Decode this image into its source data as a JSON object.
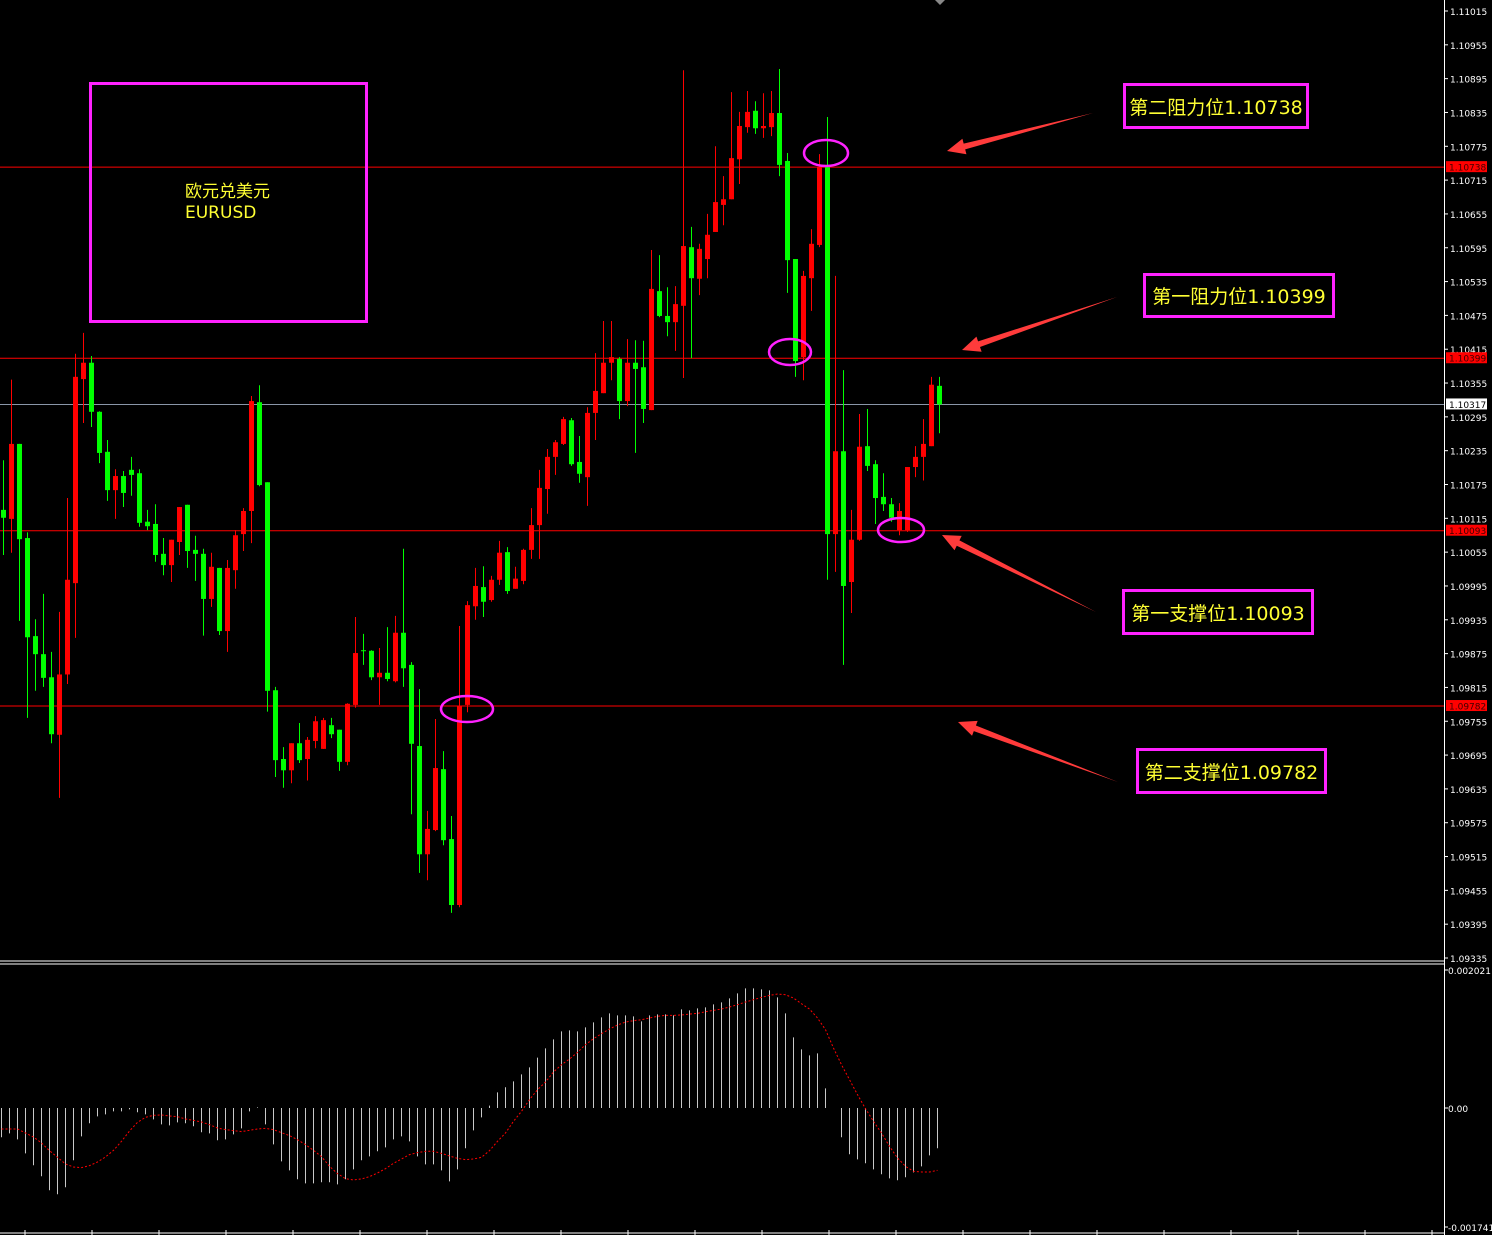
{
  "symbol": {
    "name_cn": "欧元兑美元",
    "name": "EURUSD"
  },
  "colors": {
    "background": "#000000",
    "up_candle": "#ff0000",
    "down_candle": "#00ff00",
    "level_line": "#ff0000",
    "current_price_line": "#8a96a8",
    "annotation": "#ff22ff",
    "label_text": "#ffff33",
    "macd_histogram": "#c8c8c8",
    "macd_signal": "#ff0000"
  },
  "levels": [
    {
      "label": "第二阻力位1.10738",
      "price": 1.10738,
      "tag": "1.10738"
    },
    {
      "label": "第一阻力位1.10399",
      "price": 1.10399,
      "tag": "1.10399"
    },
    {
      "label": "第一支撑位1.10093",
      "price": 1.10093,
      "tag": "1.10093"
    },
    {
      "label": "第二支撑位1.09782",
      "price": 1.09782,
      "tag": "1.09782"
    }
  ],
  "current_price": {
    "price": 1.10317,
    "tag": "1.10317"
  },
  "price_axis": {
    "labels": [
      "1.11015",
      "1.10955",
      "1.10895",
      "1.10835",
      "1.10775",
      "1.10715",
      "1.10655",
      "1.10595",
      "1.10535",
      "1.10475",
      "1.10415",
      "1.10355",
      "1.10295",
      "1.10235",
      "1.10175",
      "1.10115",
      "1.10055",
      "1.09995",
      "1.09935",
      "1.09875",
      "1.09815",
      "1.09755",
      "1.09695",
      "1.09635",
      "1.09575",
      "1.09515",
      "1.09455",
      "1.09395",
      "1.09335"
    ],
    "max": 1.11015,
    "min": 1.09335
  },
  "macd_axis": {
    "labels": [
      "0.002021",
      "0.00",
      "-0.001741"
    ],
    "max": 0.002021,
    "min": -0.001741
  },
  "chart_data": [
    {
      "type": "candlestick",
      "title": "EURUSD",
      "ylim": [
        1.09335,
        1.11015
      ],
      "grid": false,
      "fields": [
        "open",
        "high",
        "low",
        "close"
      ],
      "candles": [
        [
          1.1013,
          1.10218,
          1.1005,
          1.10116
        ],
        [
          1.10114,
          1.10361,
          1.10054,
          1.10247
        ],
        [
          1.10247,
          1.10247,
          1.09933,
          1.10078
        ],
        [
          1.1008,
          1.1009,
          1.09761,
          1.09904
        ],
        [
          1.09906,
          1.09936,
          1.09809,
          1.09874
        ],
        [
          1.09874,
          1.09981,
          1.09816,
          1.09832
        ],
        [
          1.09833,
          1.09878,
          1.09716,
          1.09732
        ],
        [
          1.09731,
          1.09949,
          1.09619,
          1.09838
        ],
        [
          1.09838,
          1.10151,
          1.09821,
          1.10006
        ],
        [
          1.1,
          1.10407,
          1.09903,
          1.10366
        ],
        [
          1.10362,
          1.10444,
          1.10284,
          1.10391
        ],
        [
          1.10391,
          1.10403,
          1.10277,
          1.10304
        ],
        [
          1.10304,
          1.10305,
          1.10213,
          1.10231
        ],
        [
          1.10233,
          1.10254,
          1.10146,
          1.10165
        ],
        [
          1.10165,
          1.10202,
          1.10114,
          1.1019
        ],
        [
          1.1019,
          1.10199,
          1.10135,
          1.1016
        ],
        [
          1.10201,
          1.10224,
          1.10155,
          1.10192
        ],
        [
          1.10195,
          1.10202,
          1.101,
          1.10107
        ],
        [
          1.10109,
          1.1013,
          1.10094,
          1.10101
        ],
        [
          1.10105,
          1.1014,
          1.10038,
          1.1005
        ],
        [
          1.10052,
          1.1008,
          1.10014,
          1.10032
        ],
        [
          1.10032,
          1.10077,
          1.10002,
          1.10077
        ],
        [
          1.10073,
          1.10135,
          1.1005,
          1.10135
        ],
        [
          1.10139,
          1.10139,
          1.10027,
          1.10057
        ],
        [
          1.10059,
          1.10084,
          1.10004,
          1.10052
        ],
        [
          1.10052,
          1.10061,
          1.09907,
          1.09972
        ],
        [
          1.09972,
          1.10054,
          1.09958,
          1.10029
        ],
        [
          1.10027,
          1.10027,
          1.09908,
          1.09915
        ],
        [
          1.09915,
          1.10041,
          1.09878,
          1.10027
        ],
        [
          1.10023,
          1.10094,
          1.0999,
          1.10085
        ],
        [
          1.10087,
          1.10133,
          1.10057,
          1.10128
        ],
        [
          1.10128,
          1.10332,
          1.10071,
          1.10323
        ],
        [
          1.10321,
          1.10351,
          1.10172,
          1.10174
        ],
        [
          1.10179,
          1.10179,
          1.09772,
          1.09809
        ],
        [
          1.0981,
          1.09816,
          1.09656,
          1.09686
        ],
        [
          1.09688,
          1.09709,
          1.09637,
          1.09668
        ],
        [
          1.09668,
          1.09716,
          1.09645,
          1.09716
        ],
        [
          1.09716,
          1.09752,
          1.09681,
          1.09686
        ],
        [
          1.09688,
          1.09727,
          1.0965,
          1.09722
        ],
        [
          1.0972,
          1.09764,
          1.09707,
          1.09755
        ],
        [
          1.09706,
          1.09761,
          1.09706,
          1.09757
        ],
        [
          1.09748,
          1.09761,
          1.09725,
          1.09732
        ],
        [
          1.0974,
          1.0974,
          1.09667,
          1.09683
        ],
        [
          1.09683,
          1.09787,
          1.09677,
          1.09786
        ],
        [
          1.09784,
          1.0994,
          1.09779,
          1.09876
        ],
        [
          1.09881,
          1.0991,
          1.09855,
          1.0988
        ],
        [
          1.0988,
          1.09881,
          1.09828,
          1.09833
        ],
        [
          1.09833,
          1.09885,
          1.09784,
          1.09841
        ],
        [
          1.09841,
          1.09922,
          1.09826,
          1.0983
        ],
        [
          1.09826,
          1.09942,
          1.09824,
          1.09912
        ],
        [
          1.09912,
          1.10061,
          1.09816,
          1.09849
        ],
        [
          1.09855,
          1.0986,
          1.0959,
          1.09715
        ],
        [
          1.09711,
          1.09812,
          1.09486,
          1.09519
        ],
        [
          1.09519,
          1.09596,
          1.09473,
          1.09564
        ],
        [
          1.09562,
          1.09759,
          1.0956,
          1.09672
        ],
        [
          1.0967,
          1.09702,
          1.09535,
          1.09544
        ],
        [
          1.09546,
          1.09587,
          1.09415,
          1.09429
        ],
        [
          1.09429,
          1.09924,
          1.09425,
          1.09782
        ],
        [
          1.09784,
          1.09968,
          1.09771,
          1.09961
        ],
        [
          1.09959,
          1.10027,
          1.09935,
          1.09995
        ],
        [
          1.09993,
          1.1003,
          1.0994,
          1.09967
        ],
        [
          1.0997,
          1.10013,
          1.09967,
          1.10006
        ],
        [
          1.10006,
          1.10075,
          1.09997,
          1.10054
        ],
        [
          1.10055,
          1.10064,
          1.09981,
          1.09986
        ],
        [
          1.0999,
          1.10029,
          1.0999,
          1.10008
        ],
        [
          1.10004,
          1.10061,
          1.09998,
          1.10059
        ],
        [
          1.10059,
          1.10133,
          1.10043,
          1.10103
        ],
        [
          1.10103,
          1.10201,
          1.10043,
          1.10169
        ],
        [
          1.10167,
          1.10238,
          1.10123,
          1.10224
        ],
        [
          1.10224,
          1.10254,
          1.10192,
          1.1025
        ],
        [
          1.10247,
          1.10295,
          1.10245,
          1.10291
        ],
        [
          1.10289,
          1.10293,
          1.10208,
          1.10211
        ],
        [
          1.10215,
          1.10261,
          1.10178,
          1.10194
        ],
        [
          1.10188,
          1.10312,
          1.10137,
          1.10302
        ],
        [
          1.10302,
          1.10408,
          1.10254,
          1.10341
        ],
        [
          1.10337,
          1.10465,
          1.10337,
          1.10391
        ],
        [
          1.10391,
          1.10465,
          1.1036,
          1.10401
        ],
        [
          1.10398,
          1.10401,
          1.10291,
          1.10323
        ],
        [
          1.10323,
          1.10433,
          1.10314,
          1.10391
        ],
        [
          1.10391,
          1.10431,
          1.10231,
          1.1038
        ],
        [
          1.10383,
          1.1043,
          1.10284,
          1.10309
        ],
        [
          1.10307,
          1.10591,
          1.10307,
          1.10522
        ],
        [
          1.10518,
          1.10582,
          1.10472,
          1.10474
        ],
        [
          1.10474,
          1.10525,
          1.10438,
          1.10463
        ],
        [
          1.10463,
          1.10527,
          1.10412,
          1.10495
        ],
        [
          1.10492,
          1.1091,
          1.10364,
          1.10598
        ],
        [
          1.10596,
          1.10632,
          1.10399,
          1.10541
        ],
        [
          1.1054,
          1.10602,
          1.10511,
          1.10593
        ],
        [
          1.10575,
          1.10655,
          1.10541,
          1.10618
        ],
        [
          1.10623,
          1.10775,
          1.10623,
          1.10676
        ],
        [
          1.10671,
          1.10722,
          1.10635,
          1.10681
        ],
        [
          1.10681,
          1.10871,
          1.10681,
          1.10754
        ],
        [
          1.10752,
          1.10836,
          1.10708,
          1.10811
        ],
        [
          1.10809,
          1.10873,
          1.10799,
          1.10836
        ],
        [
          1.10838,
          1.10855,
          1.10797,
          1.10807
        ],
        [
          1.10807,
          1.10869,
          1.1079,
          1.10811
        ],
        [
          1.10809,
          1.10873,
          1.10793,
          1.10834
        ],
        [
          1.10834,
          1.10912,
          1.10722,
          1.10742
        ],
        [
          1.10749,
          1.10763,
          1.10515,
          1.10573
        ],
        [
          1.10575,
          1.10575,
          1.10366,
          1.10394
        ],
        [
          1.10401,
          1.10554,
          1.1036,
          1.10545
        ],
        [
          1.10541,
          1.10628,
          1.10483,
          1.10602
        ],
        [
          1.106,
          1.10761,
          1.10596,
          1.10738
        ],
        [
          1.10738,
          1.10827,
          1.10006,
          1.10087
        ],
        [
          1.10087,
          1.10545,
          1.1002,
          1.10234
        ],
        [
          1.10234,
          1.10378,
          1.09855,
          1.09995
        ],
        [
          1.10002,
          1.1013,
          1.09947,
          1.10077
        ],
        [
          1.10077,
          1.103,
          1.10075,
          1.10242
        ],
        [
          1.10243,
          1.10309,
          1.10199,
          1.10208
        ],
        [
          1.10211,
          1.10218,
          1.10105,
          1.10151
        ],
        [
          1.10153,
          1.10195,
          1.10128,
          1.1014
        ],
        [
          1.1014,
          1.10151,
          1.10109,
          1.10116
        ],
        [
          1.10094,
          1.10142,
          1.10085,
          1.10128
        ],
        [
          1.10094,
          1.10206,
          1.10091,
          1.10206
        ],
        [
          1.10206,
          1.10243,
          1.10188,
          1.10224
        ],
        [
          1.10224,
          1.10291,
          1.10182,
          1.10247
        ],
        [
          1.10243,
          1.10366,
          1.10243,
          1.10352
        ],
        [
          1.1035,
          1.10366,
          1.10266,
          1.10317
        ]
      ]
    },
    {
      "type": "bar+line",
      "ylim": [
        -0.001741,
        0.002021
      ],
      "histogram": [
        -0.000429,
        -0.000371,
        -0.000459,
        -0.000664,
        -0.000839,
        -0.001,
        -0.001205,
        -0.001264,
        -0.001161,
        -0.000766,
        -0.000415,
        -0.000224,
        -0.000122,
        -9.3e-05,
        -4.9e-05,
        -4.9e-05,
        -2e-05,
        -6.3e-05,
        -9.3e-05,
        -0.000166,
        -0.000239,
        -0.000254,
        -0.00021,
        -0.000224,
        -0.000268,
        -0.000356,
        -0.000371,
        -0.000473,
        -0.000459,
        -0.000386,
        -0.000298,
        -4.9e-05,
        1e-05,
        -0.000239,
        -0.000532,
        -0.000781,
        -0.000913,
        -0.001044,
        -0.001103,
        -0.001103,
        -0.001088,
        -0.001088,
        -0.001118,
        -0.001044,
        -0.000898,
        -0.000766,
        -0.000708,
        -0.000634,
        -0.000576,
        -0.000459,
        -0.000415,
        -0.000488,
        -0.000708,
        -0.000825,
        -0.000825,
        -0.000913,
        -0.001074,
        -0.000898,
        -0.00059,
        -0.000327,
        -0.000137,
        3.4e-05,
        0.000229,
        0.000303,
        0.00039,
        0.000493,
        0.000595,
        0.000737,
        0.000874,
        0.001005,
        0.001122,
        0.001137,
        0.001122,
        0.001181,
        0.001254,
        0.001327,
        0.001386,
        0.001357,
        0.001357,
        0.001342,
        0.001269,
        0.001357,
        0.001371,
        0.001371,
        0.001357,
        0.001444,
        0.00143,
        0.001459,
        0.001474,
        0.001518,
        0.001547,
        0.001606,
        0.001679,
        0.001752,
        0.001752,
        0.001737,
        0.001723,
        0.00162,
        0.001386,
        0.001035,
        0.000859,
        0.000771,
        0.0008,
        0.000288,
        0.0,
        -0.000429,
        -0.000678,
        -0.000752,
        -0.00081,
        -0.000898,
        -0.000971,
        -0.00103,
        -0.001059,
        -0.001015,
        -0.000942,
        -0.000854,
        -0.000693,
        -0.00059
      ],
      "signal": [
        -0.000307,
        -0.000307,
        -0.000307,
        -0.000366,
        -0.000425,
        -0.000512,
        -0.000625,
        -0.000722,
        -0.00082,
        -0.000864,
        -0.000874,
        -0.000844,
        -0.000791,
        -0.000717,
        -0.00062,
        -0.000488,
        -0.000337,
        -0.00021,
        -0.000137,
        -0.000107,
        -0.000102,
        -0.000117,
        -0.000127,
        -0.000161,
        -0.000181,
        -0.000205,
        -0.000244,
        -0.000293,
        -0.000317,
        -0.000332,
        -0.000346,
        -0.000327,
        -0.000307,
        -0.000298,
        -0.000317,
        -0.000361,
        -0.000405,
        -0.000464,
        -0.000537,
        -0.00062,
        -0.000712,
        -0.000854,
        -0.000961,
        -0.001035,
        -0.001054,
        -0.001039,
        -0.001005,
        -0.000952,
        -0.000888,
        -0.00081,
        -0.000747,
        -0.000683,
        -0.000654,
        -0.000634,
        -0.000634,
        -0.000664,
        -0.000703,
        -0.000737,
        -0.000756,
        -0.000747,
        -0.000722,
        -0.000625,
        -0.000488,
        -0.000366,
        -0.000195,
        -4.9e-05,
        0.000122,
        0.000268,
        0.000381,
        0.000527,
        0.000634,
        0.000717,
        0.000815,
        0.000927,
        0.001015,
        0.001088,
        0.001157,
        0.001215,
        0.001259,
        0.001279,
        0.001293,
        0.001318,
        0.001342,
        0.001357,
        0.001357,
        0.001362,
        0.001376,
        0.001386,
        0.00141,
        0.00143,
        0.001449,
        0.001479,
        0.001513,
        0.001552,
        0.001586,
        0.00162,
        0.001649,
        0.001669,
        0.001659,
        0.00161,
        0.001527,
        0.001449,
        0.001318,
        0.001147,
        0.000878,
        0.000634,
        0.000415,
        0.000195,
        -1e-05,
        -0.000195,
        -0.000366,
        -0.000561,
        -0.000732,
        -0.000854,
        -0.000927,
        -0.000937,
        -0.000937,
        -0.000913
      ]
    }
  ]
}
